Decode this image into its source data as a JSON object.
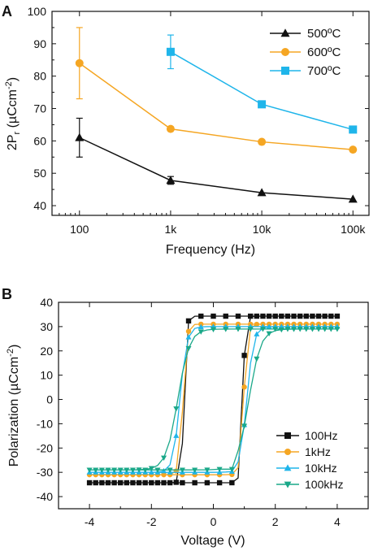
{
  "chart_data": [
    {
      "type": "line",
      "panel_label": "A",
      "xlabel": "Frequency (Hz)",
      "ylabel": "2P_r (µCcm^-2)",
      "xscale": "log",
      "xlim": [
        50,
        150000
      ],
      "ylim": [
        37,
        100
      ],
      "x_ticks": [
        {
          "value": 100,
          "label": "100"
        },
        {
          "value": 1000,
          "label": "1k"
        },
        {
          "value": 10000,
          "label": "10k"
        },
        {
          "value": 100000,
          "label": "100k"
        }
      ],
      "y_ticks": [
        40,
        50,
        60,
        70,
        80,
        90,
        100
      ],
      "legend_position": "top-right",
      "series": [
        {
          "name": "500ºC",
          "color": "#111111",
          "marker": "triangle-up",
          "x": [
            100,
            1000,
            10000,
            100000
          ],
          "y": [
            61,
            47.8,
            44,
            42
          ],
          "error": [
            6,
            1.2,
            null,
            null
          ]
        },
        {
          "name": "600ºC",
          "color": "#f5a623",
          "marker": "circle",
          "x": [
            100,
            1000,
            10000,
            100000
          ],
          "y": [
            84,
            63.7,
            59.7,
            57.3
          ],
          "error": [
            11,
            null,
            null,
            null
          ]
        },
        {
          "name": "700ºC",
          "color": "#1fb5ea",
          "marker": "square",
          "x": [
            1000,
            10000,
            100000
          ],
          "y": [
            87.5,
            71.3,
            63.5
          ],
          "error": [
            5.2,
            null,
            null
          ]
        }
      ]
    },
    {
      "type": "scatter",
      "panel_label": "B",
      "xlabel": "Voltage (V)",
      "ylabel": "Polarization (µCcm^-2)",
      "xlim": [
        -5,
        5
      ],
      "ylim": [
        -45,
        40
      ],
      "x_ticks": [
        -4,
        -2,
        0,
        2,
        4
      ],
      "y_ticks": [
        -40,
        -30,
        -20,
        -10,
        0,
        10,
        20,
        30,
        40
      ],
      "legend_position": "bottom-right",
      "series": [
        {
          "name": "100Hz",
          "color": "#111111",
          "marker": "square",
          "Ps": 34.3,
          "Pr": 32.5,
          "Vc": 0.95,
          "w": 0.085,
          "Pmin": -33.5
        },
        {
          "name": "1kHz",
          "color": "#f5a623",
          "marker": "circle",
          "Ps": 31.0,
          "Pr": 29.5,
          "Vc": 0.98,
          "w": 0.12,
          "Pmin": -31.5
        },
        {
          "name": "10kHz",
          "color": "#1fb5ea",
          "marker": "triangle-up",
          "Ps": 30.0,
          "Pr": 27.5,
          "Vc": 1.08,
          "w": 0.22,
          "Pmin": -30.5
        },
        {
          "name": "100kHz",
          "color": "#1aa889",
          "marker": "triangle-down",
          "Ps": 29.0,
          "Pr": 26.0,
          "Vc": 1.15,
          "w": 0.38,
          "Pmin": -29.5
        }
      ]
    }
  ]
}
